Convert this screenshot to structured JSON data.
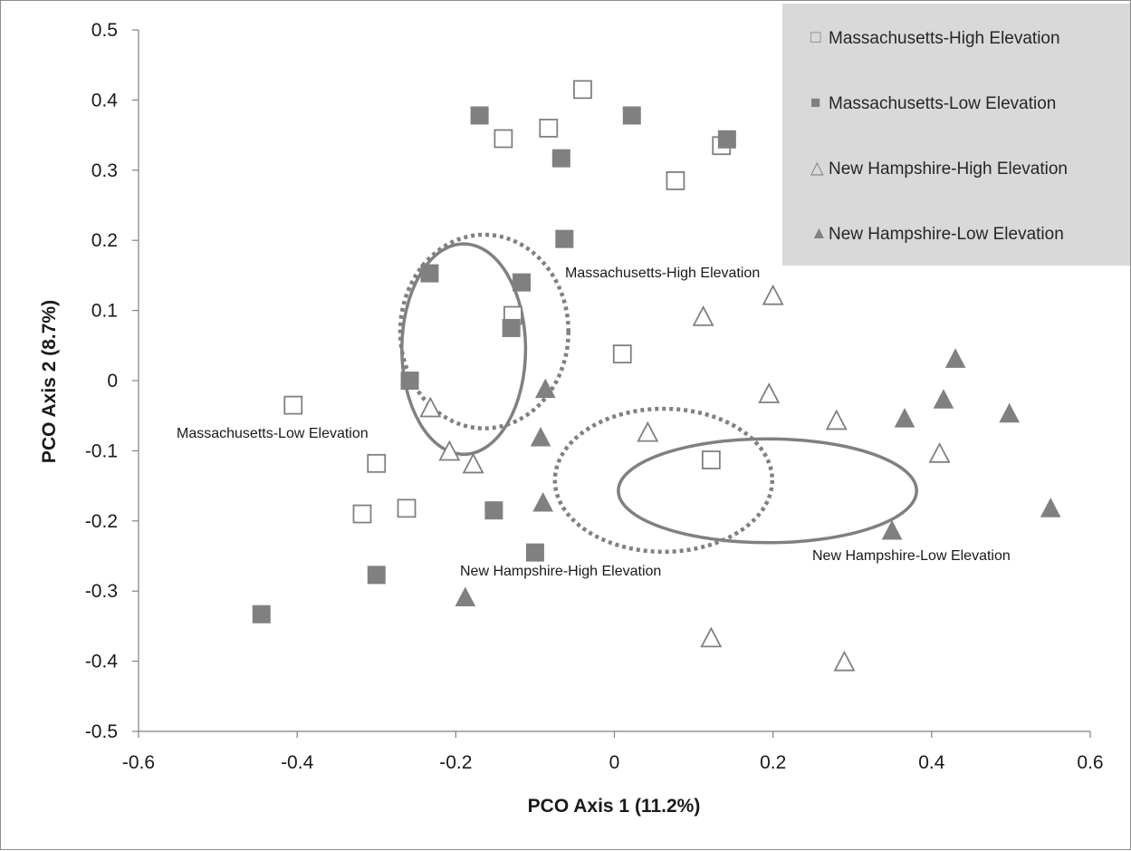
{
  "chart_data": {
    "type": "scatter",
    "xlabel": "PCO Axis 1 (11.2%)",
    "ylabel": "PCO Axis 2 (8.7%)",
    "xlim": [
      -0.6,
      0.6
    ],
    "ylim": [
      -0.5,
      0.5
    ],
    "x_ticks": [
      "-0.6",
      "-0.4",
      "-0.2",
      "0",
      "0.2",
      "0.4",
      "0.6"
    ],
    "y_ticks": [
      "0.5",
      "0.4",
      "0.3",
      "0.2",
      "0.1",
      "0",
      "-0.1",
      "-0.2",
      "-0.3",
      "-0.4",
      "-0.5"
    ],
    "grid": false,
    "legend_position": "top-right",
    "series": [
      {
        "name": "Massachusetts-High Elevation",
        "marker": "square-open",
        "color": "#808080",
        "points": [
          [
            -0.04,
            0.415
          ],
          [
            -0.083,
            0.36
          ],
          [
            -0.14,
            0.345
          ],
          [
            0.135,
            0.335
          ],
          [
            0.077,
            0.285
          ],
          [
            -0.128,
            0.093
          ],
          [
            0.01,
            0.038
          ],
          [
            -0.405,
            -0.035
          ],
          [
            -0.3,
            -0.118
          ],
          [
            0.122,
            -0.113
          ],
          [
            -0.262,
            -0.182
          ],
          [
            -0.318,
            -0.19
          ]
        ]
      },
      {
        "name": "Massachusetts-Low Elevation",
        "marker": "square-filled",
        "color": "#808080",
        "points": [
          [
            -0.17,
            0.378
          ],
          [
            0.022,
            0.378
          ],
          [
            0.142,
            0.344
          ],
          [
            -0.067,
            0.317
          ],
          [
            -0.063,
            0.202
          ],
          [
            -0.233,
            0.153
          ],
          [
            -0.117,
            0.14
          ],
          [
            -0.13,
            0.075
          ],
          [
            -0.258,
            0.0
          ],
          [
            -0.152,
            -0.185
          ],
          [
            -0.1,
            -0.245
          ],
          [
            -0.3,
            -0.277
          ],
          [
            -0.445,
            -0.333
          ]
        ]
      },
      {
        "name": "New Hampshire-High Elevation",
        "marker": "triangle-open",
        "color": "#808080",
        "points": [
          [
            0.2,
            0.12
          ],
          [
            0.112,
            0.09
          ],
          [
            0.195,
            -0.02
          ],
          [
            -0.232,
            -0.04
          ],
          [
            0.28,
            -0.058
          ],
          [
            0.042,
            -0.075
          ],
          [
            0.41,
            -0.105
          ],
          [
            -0.208,
            -0.102
          ],
          [
            -0.178,
            -0.12
          ],
          [
            0.122,
            -0.368
          ],
          [
            0.29,
            -0.402
          ]
        ]
      },
      {
        "name": "New Hampshire-Low Elevation",
        "marker": "triangle-filled",
        "color": "#808080",
        "points": [
          [
            0.43,
            0.03
          ],
          [
            0.415,
            -0.028
          ],
          [
            -0.087,
            -0.013
          ],
          [
            0.498,
            -0.048
          ],
          [
            0.366,
            -0.055
          ],
          [
            -0.093,
            -0.082
          ],
          [
            -0.09,
            -0.175
          ],
          [
            0.55,
            -0.183
          ],
          [
            0.35,
            -0.215
          ],
          [
            -0.188,
            -0.31
          ]
        ]
      }
    ],
    "ellipses": [
      {
        "label": "Massachusetts-High Elevation",
        "style": "dotted",
        "cx": -0.164,
        "cy": 0.07,
        "rx": 0.106,
        "ry": 0.138
      },
      {
        "label": "Massachusetts-Low Elevation",
        "style": "solid",
        "cx": -0.19,
        "cy": 0.045,
        "rx": 0.078,
        "ry": 0.15
      },
      {
        "label": "New Hampshire-High Elevation",
        "style": "dotted",
        "cx": 0.062,
        "cy": -0.142,
        "rx": 0.137,
        "ry": 0.102
      },
      {
        "label": "New Hampshire-Low Elevation",
        "style": "solid",
        "cx": 0.193,
        "cy": -0.157,
        "rx": 0.188,
        "ry": 0.074
      }
    ]
  },
  "annotations": {
    "ma_high": "Massachusetts-High Elevation",
    "ma_low": "Massachusetts-Low Elevation",
    "nh_high": "New Hampshire-High Elevation",
    "nh_low": "New Hampshire-Low Elevation"
  },
  "legend": {
    "background": "#d9d9d9",
    "items": [
      {
        "label": "Massachusetts-High Elevation",
        "glyph": "□"
      },
      {
        "label": "Massachusetts-Low Elevation",
        "glyph": "■"
      },
      {
        "label": "New Hampshire-High Elevation",
        "glyph": "△"
      },
      {
        "label": "New Hampshire-Low Elevation",
        "glyph": "▲"
      }
    ]
  },
  "colors": {
    "marker": "#808080",
    "axis": "#808080",
    "ellipse": "#808080"
  }
}
